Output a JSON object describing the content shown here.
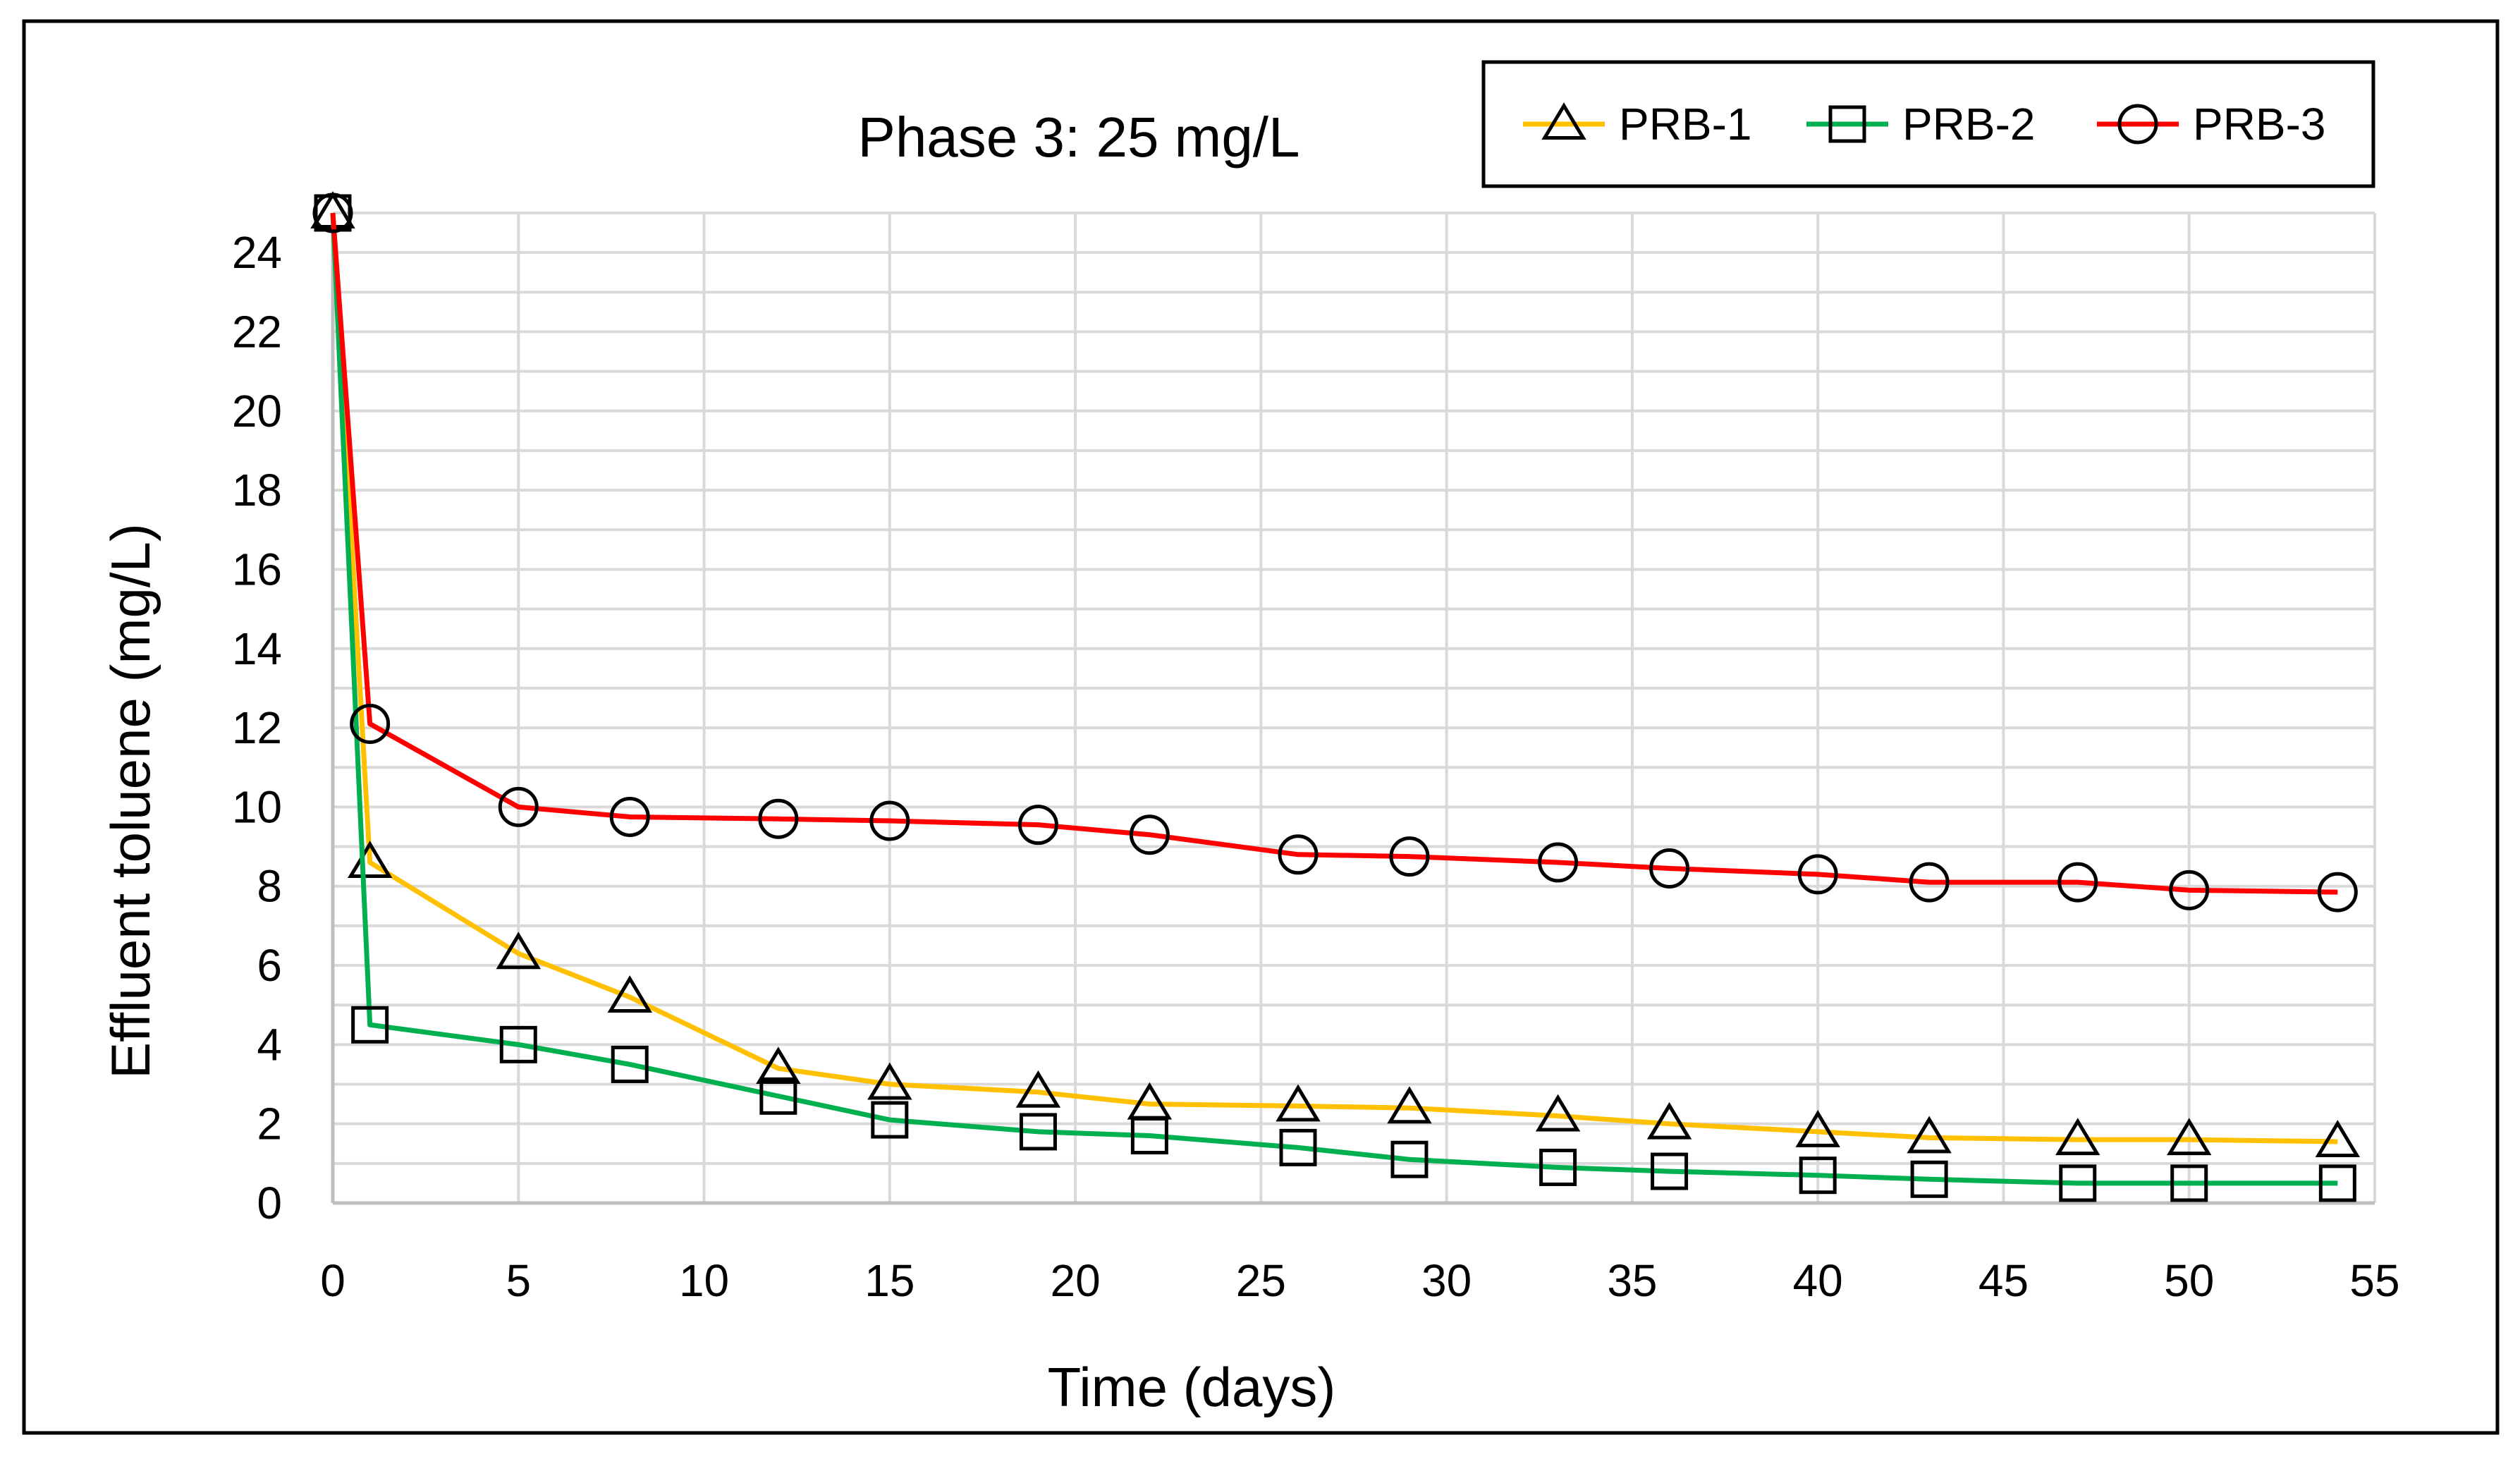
{
  "chart_data": {
    "type": "line",
    "title": "Phase 3: 25 mg/L",
    "xlabel": "Time (days)",
    "ylabel": "Effluent toluene (mg/L)",
    "xlim": [
      0,
      55
    ],
    "ylim": [
      0,
      25
    ],
    "x_ticks": [
      0,
      5,
      10,
      15,
      20,
      25,
      30,
      35,
      40,
      45,
      50,
      55
    ],
    "y_ticks": [
      0,
      2,
      4,
      6,
      8,
      10,
      12,
      14,
      16,
      18,
      20,
      22,
      24
    ],
    "grid": true,
    "legend_position": "top-right",
    "series": [
      {
        "name": "PRB-1",
        "color": "#FFC000",
        "marker": "triangle",
        "x": [
          0,
          1,
          5,
          8,
          12,
          15,
          19,
          22,
          26,
          29,
          33,
          36,
          40,
          43,
          47,
          50,
          54
        ],
        "values": [
          25,
          8.6,
          6.3,
          5.2,
          3.4,
          3.0,
          2.8,
          2.5,
          2.45,
          2.4,
          2.2,
          2.0,
          1.8,
          1.65,
          1.6,
          1.6,
          1.55
        ]
      },
      {
        "name": "PRB-2",
        "color": "#00B050",
        "marker": "square",
        "x": [
          0,
          1,
          5,
          8,
          12,
          15,
          19,
          22,
          26,
          29,
          33,
          36,
          40,
          43,
          47,
          50,
          54
        ],
        "values": [
          25,
          4.5,
          4.0,
          3.5,
          2.7,
          2.1,
          1.8,
          1.7,
          1.4,
          1.1,
          0.9,
          0.8,
          0.7,
          0.6,
          0.5,
          0.5,
          0.5
        ]
      },
      {
        "name": "PRB-3",
        "color": "#FF0000",
        "marker": "circle",
        "x": [
          0,
          1,
          5,
          8,
          12,
          15,
          19,
          22,
          26,
          29,
          33,
          36,
          40,
          43,
          47,
          50,
          54
        ],
        "values": [
          25,
          12.1,
          10.0,
          9.75,
          9.7,
          9.65,
          9.55,
          9.3,
          8.8,
          8.75,
          8.6,
          8.45,
          8.3,
          8.1,
          8.1,
          7.9,
          7.85
        ]
      }
    ]
  }
}
